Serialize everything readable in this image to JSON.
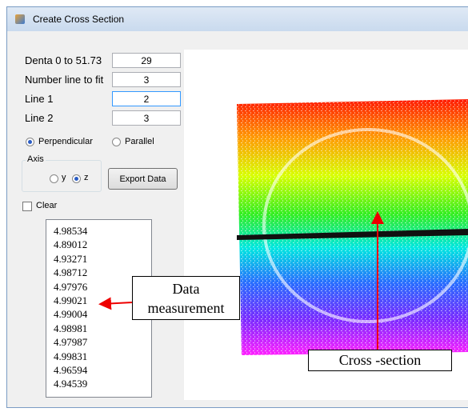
{
  "window": {
    "title": "Create Cross Section"
  },
  "form": {
    "fields": [
      {
        "label": "Denta 0 to 51.73",
        "value": "29"
      },
      {
        "label": "Number line to fit",
        "value": "3"
      },
      {
        "label": "Line 1",
        "value": "2"
      },
      {
        "label": "Line 2",
        "value": "3"
      }
    ],
    "orientation": {
      "options": [
        "Perpendicular",
        "Parallel"
      ],
      "selected": 0
    },
    "axis": {
      "label": "Axis",
      "options": [
        "y",
        "z"
      ],
      "selected": 1
    },
    "export_button": "Export Data",
    "clear_checkbox": "Clear",
    "measurements": [
      "4.98534",
      "4.89012",
      "4.93271",
      "4.98712",
      "4.97976",
      "4.99021",
      "4.99004",
      "4.98981",
      "4.97987",
      "4.99831",
      "4.96594",
      "4.94539"
    ]
  },
  "annotations": {
    "data_measurement": "Data measurement",
    "cross_section": "Cross -section"
  }
}
